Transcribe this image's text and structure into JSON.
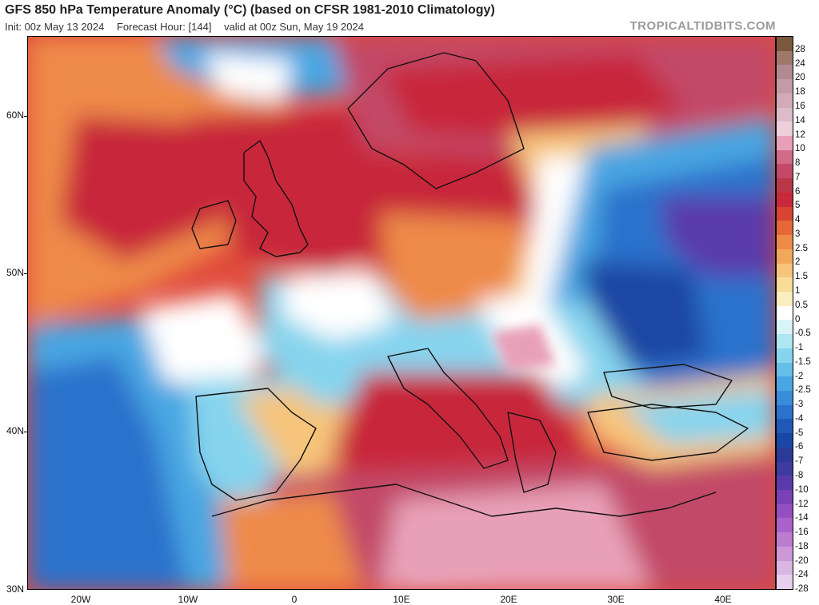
{
  "header": {
    "title": "GFS 850 hPa Temperature Anomaly (°C) (based on CFSR 1981-2010 Climatology)",
    "init": "Init: 00z May 13 2024",
    "forecast_hour": "Forecast Hour: [144]",
    "valid": "valid at 00z Sun, May 19 2024",
    "watermark": "TROPICALTIDBITS.COM"
  },
  "axes": {
    "latitude_labels": [
      "60N",
      "50N",
      "40N",
      "30N"
    ],
    "longitude_labels": [
      "20W",
      "10W",
      "0",
      "10E",
      "20E",
      "30E",
      "40E"
    ]
  },
  "legend": {
    "labels": [
      "28",
      "24",
      "20",
      "18",
      "16",
      "14",
      "12",
      "10",
      "8",
      "7",
      "6",
      "5",
      "4",
      "3",
      "2.5",
      "2",
      "1.5",
      "1",
      "0.5",
      "0",
      "-0.5",
      "-1",
      "-1.5",
      "-2",
      "-2.5",
      "-3",
      "-4",
      "-5",
      "-6",
      "-7",
      "-8",
      "-10",
      "-12",
      "-14",
      "-16",
      "-18",
      "-20",
      "-24",
      "-28"
    ],
    "colors": [
      "#7a5a3e",
      "#a0786a",
      "#b08a90",
      "#c49aa6",
      "#d2aab8",
      "#dcbccb",
      "#eed0dc",
      "#e8a0b8",
      "#d26a8a",
      "#c24a68",
      "#b83848",
      "#c8283a",
      "#d84432",
      "#e66838",
      "#ee8a48",
      "#f2a85c",
      "#f6c47a",
      "#f8dc98",
      "#faeebe",
      "#ffffff",
      "#d8f4f8",
      "#aee6f2",
      "#86d4ee",
      "#66beea",
      "#4aa6e2",
      "#3a8cd8",
      "#2c72cc",
      "#2058b8",
      "#1a46a4",
      "#2a3a96",
      "#3e3aa0",
      "#5a3aaa",
      "#7a40b6",
      "#9450c0",
      "#aa62c8",
      "#bc7cd0",
      "#cc98d8",
      "#dab6e2",
      "#e8d0ec"
    ]
  },
  "map_colors": {
    "ocean_base": "#e04a3a",
    "deep_red": "#c8283a",
    "magenta_red": "#c24a68",
    "pink": "#e8a0b8",
    "orange": "#ee8a48",
    "light_orange": "#f6c47a",
    "white": "#ffffff",
    "cyan": "#86d4ee",
    "light_blue": "#4aa6e2",
    "blue": "#2c72cc",
    "dark_blue": "#1a46a4",
    "purple": "#5a3aaa"
  }
}
